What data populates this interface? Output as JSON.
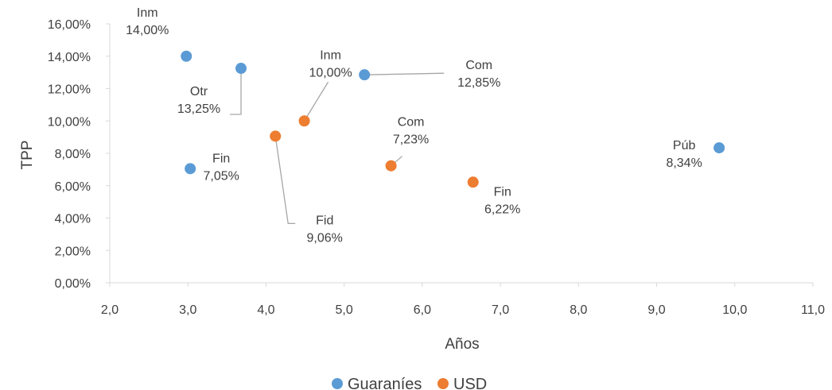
{
  "chart_data": {
    "type": "scatter",
    "xlabel": "Años",
    "ylabel": "TPP",
    "xlim": [
      2.0,
      11.0
    ],
    "ylim": [
      0.0,
      16.0
    ],
    "x_ticks": [
      "2,0",
      "3,0",
      "4,0",
      "5,0",
      "6,0",
      "7,0",
      "8,0",
      "9,0",
      "10,0",
      "11,0"
    ],
    "y_ticks": [
      "0,00%",
      "2,00%",
      "4,00%",
      "6,00%",
      "8,00%",
      "10,00%",
      "12,00%",
      "14,00%",
      "16,00%"
    ],
    "grid": false,
    "legend_position": "bottom",
    "series": [
      {
        "name": "Guaraníes",
        "color": "#5B9BD5",
        "points": [
          {
            "x": 2.98,
            "y": 14.0,
            "label": "Inm",
            "value_label": "14,00%"
          },
          {
            "x": 3.68,
            "y": 13.25,
            "label": "Otr",
            "value_label": "13,25%"
          },
          {
            "x": 5.26,
            "y": 12.85,
            "label": "Com",
            "value_label": "12,85%"
          },
          {
            "x": 3.03,
            "y": 7.05,
            "label": "Fin",
            "value_label": "7,05%"
          },
          {
            "x": 9.8,
            "y": 8.34,
            "label": "Púb",
            "value_label": "8,34%"
          }
        ]
      },
      {
        "name": "USD",
        "color": "#ED7D31",
        "points": [
          {
            "x": 4.49,
            "y": 10.0,
            "label": "Inm",
            "value_label": "10,00%"
          },
          {
            "x": 4.12,
            "y": 9.06,
            "label": "Fid",
            "value_label": "9,06%"
          },
          {
            "x": 5.6,
            "y": 7.23,
            "label": "Com",
            "value_label": "7,23%"
          },
          {
            "x": 6.65,
            "y": 6.22,
            "label": "Fin",
            "value_label": "6,22%"
          }
        ]
      }
    ]
  }
}
